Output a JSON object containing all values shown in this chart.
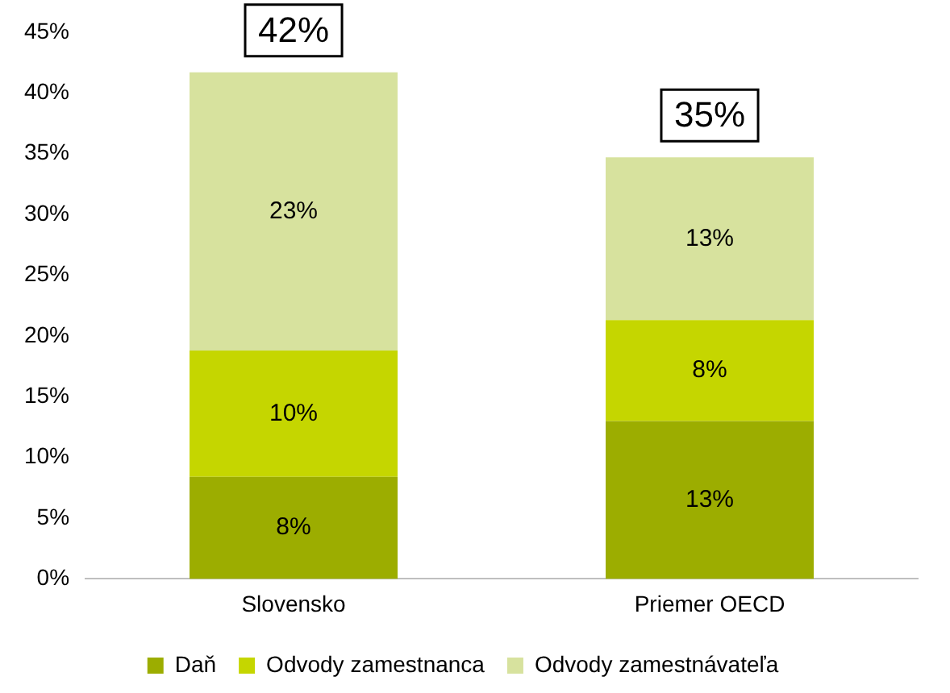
{
  "chart_data": {
    "type": "bar",
    "stacked": true,
    "categories": [
      "Slovensko",
      "Priemer OECD"
    ],
    "series": [
      {
        "name": "Daň",
        "color": "#9cad00",
        "values": [
          8.4,
          13.0
        ],
        "value_labels": [
          "8%",
          "13%"
        ]
      },
      {
        "name": "Odvody zamestnanca",
        "color": "#c5d600",
        "values": [
          10.4,
          8.3
        ],
        "value_labels": [
          "10%",
          "8%"
        ]
      },
      {
        "name": "Odvody zamestnávateľa",
        "color": "#d7e29e",
        "values": [
          22.9,
          13.4
        ],
        "value_labels": [
          "23%",
          "13%"
        ]
      }
    ],
    "totals": [
      "42%",
      "35%"
    ],
    "ylim": [
      0,
      45
    ],
    "yticks": [
      {
        "value": 0,
        "label": "0%"
      },
      {
        "value": 5,
        "label": "5%"
      },
      {
        "value": 10,
        "label": "10%"
      },
      {
        "value": 15,
        "label": "15%"
      },
      {
        "value": 20,
        "label": "20%"
      },
      {
        "value": 25,
        "label": "25%"
      },
      {
        "value": 30,
        "label": "30%"
      },
      {
        "value": 35,
        "label": "35%"
      },
      {
        "value": 40,
        "label": "40%"
      },
      {
        "value": 45,
        "label": "45%"
      }
    ],
    "grid": false,
    "legend": "bottom"
  }
}
